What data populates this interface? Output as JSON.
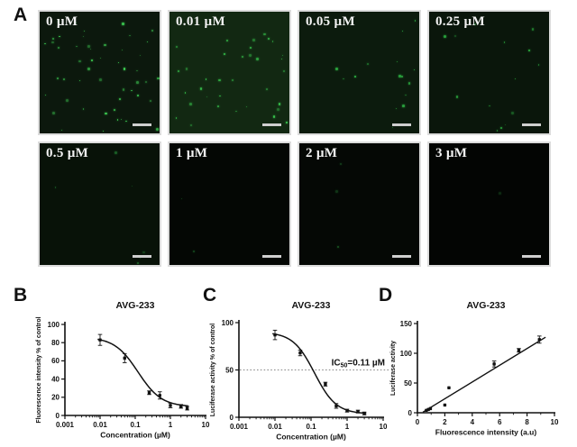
{
  "figure": {
    "panel_a": {
      "letter": "A",
      "images": [
        {
          "label": "0 µM",
          "bg": "#0c180d",
          "dot_color": "#3fd455",
          "dots": 50
        },
        {
          "label": "0.01 µM",
          "bg": "#122812",
          "dot_color": "#38c94e",
          "dots": 34
        },
        {
          "label": "0.05 µM",
          "bg": "#0c1b0d",
          "dot_color": "#2fb845",
          "dots": 16
        },
        {
          "label": "0.25 µM",
          "bg": "#0a160b",
          "dot_color": "#2aa83e",
          "dots": 14
        },
        {
          "label": "0.5 µM",
          "bg": "#081208",
          "dot_color": "#1e6e2c",
          "dots": 6
        },
        {
          "label": "1 µM",
          "bg": "#040704",
          "dot_color": "#174f20",
          "dots": 2
        },
        {
          "label": "2 µM",
          "bg": "#050805",
          "dot_color": "#1a5a24",
          "dots": 3
        },
        {
          "label": "3 µM",
          "bg": "#030503",
          "dot_color": "#133f1a",
          "dots": 1
        }
      ],
      "scale_bar": "scale-bar",
      "accent_green": "#3fd455"
    }
  },
  "chart_data": [
    {
      "id": "B",
      "panel_letter": "B",
      "type": "scatter",
      "title": "AVG-233",
      "xlabel": "Concentration (µM)",
      "ylabel": "Fluorescence intensity % of control",
      "xscale": "log",
      "xlim": [
        0.001,
        10
      ],
      "ylim": [
        0,
        100
      ],
      "xticks": [
        0.001,
        0.01,
        0.1,
        1,
        10
      ],
      "xtick_labels": [
        "0.001",
        "0.01",
        "0.1",
        "1",
        "10"
      ],
      "yticks": [
        0,
        20,
        40,
        60,
        80,
        100
      ],
      "grid": false,
      "points": {
        "x": [
          0.01,
          0.05,
          0.25,
          0.5,
          1,
          2,
          3
        ],
        "y": [
          83,
          63,
          25,
          22,
          11,
          10,
          8
        ],
        "err": [
          6,
          5,
          2,
          4,
          2.5,
          2,
          2
        ]
      },
      "fit": {
        "type": "sigmoid",
        "top": 86,
        "bottom": 9.5,
        "ic50": 0.12,
        "hill": 1.3,
        "xrange": [
          0.0085,
          3.2
        ]
      }
    },
    {
      "id": "C",
      "panel_letter": "C",
      "type": "scatter",
      "title": "AVG-233",
      "xlabel": "Concentration (µM)",
      "ylabel": "Luciferase activity % of control",
      "xscale": "log",
      "xlim": [
        0.001,
        10
      ],
      "ylim": [
        0,
        100
      ],
      "xticks": [
        0.001,
        0.01,
        0.1,
        1,
        10
      ],
      "xtick_labels": [
        "0.001",
        "0.01",
        "0.1",
        "1",
        "10"
      ],
      "yticks": [
        0,
        50,
        100
      ],
      "grid": false,
      "points": {
        "x": [
          0.01,
          0.05,
          0.25,
          0.5,
          1,
          2,
          3
        ],
        "y": [
          87,
          68,
          35,
          12,
          7,
          6,
          4
        ],
        "err": [
          5,
          3,
          2,
          2.5,
          1.5,
          1.5,
          1.5
        ]
      },
      "fit": {
        "type": "sigmoid",
        "top": 90,
        "bottom": 3.5,
        "ic50": 0.125,
        "hill": 1.45,
        "xrange": [
          0.0085,
          3.4
        ]
      },
      "annotation": {
        "line_y": 50,
        "text_prefix": "IC",
        "text_sub": "50",
        "text_rest": "=0.11 µM"
      }
    },
    {
      "id": "D",
      "panel_letter": "D",
      "type": "scatter",
      "title": "AVG-233",
      "xlabel": "Fluorescence intensity (a.u)",
      "ylabel": "Luciferase activity",
      "xscale": "linear",
      "xlim": [
        0,
        10
      ],
      "ylim": [
        0,
        150
      ],
      "xticks": [
        0,
        2,
        4,
        6,
        8,
        10
      ],
      "xtick_labels": [
        "0",
        "2",
        "4",
        "6",
        "8",
        "10"
      ],
      "xminor": [
        1,
        3,
        5,
        7,
        9
      ],
      "yticks": [
        0,
        50,
        100,
        150
      ],
      "grid": false,
      "points": {
        "x": [
          0.65,
          0.8,
          0.95,
          2.0,
          2.3,
          5.6,
          7.4,
          8.9
        ],
        "y": [
          4,
          5.5,
          7,
          13,
          42,
          82,
          105,
          123
        ],
        "err": [
          0,
          0,
          0,
          0,
          0,
          5,
          3,
          6
        ]
      },
      "fit": {
        "type": "line",
        "x": [
          0.4,
          9.35
        ],
        "y": [
          1,
          127
        ]
      }
    }
  ]
}
